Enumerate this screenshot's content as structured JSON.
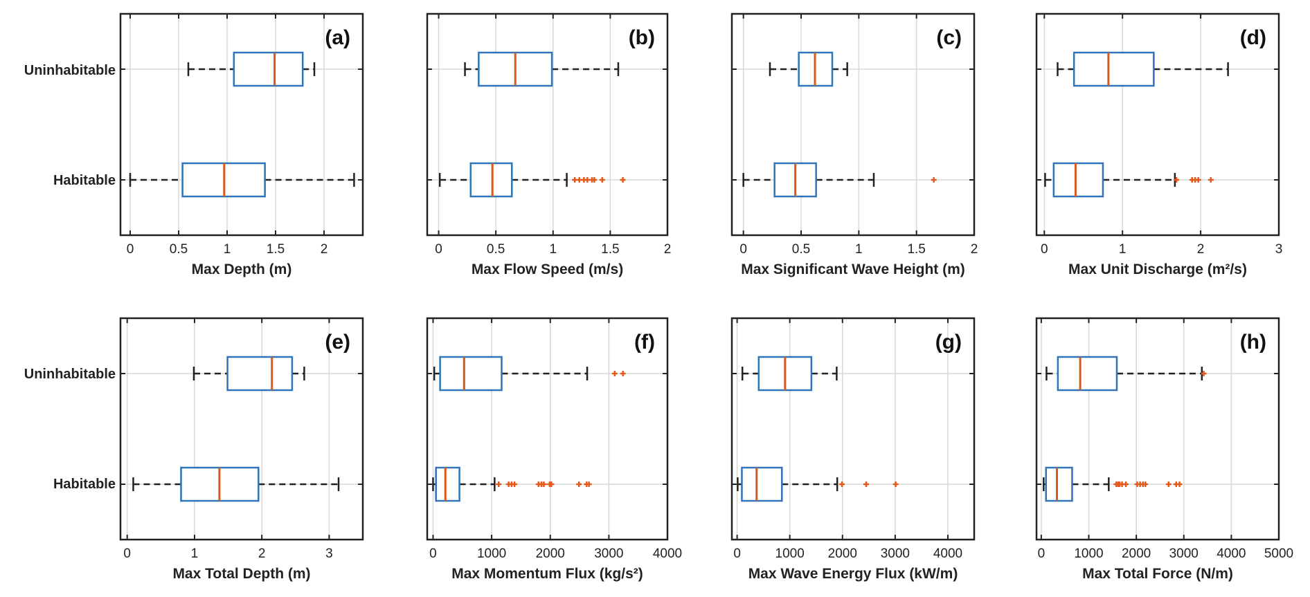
{
  "figure": {
    "categories": [
      "Uninhabitable",
      "Habitable"
    ]
  },
  "chart_data": [
    {
      "type": "box",
      "panel_label": "(a)",
      "xlabel": "Max Depth (m)",
      "xlim": [
        -0.1,
        2.4
      ],
      "xticks": [
        0,
        0.5,
        1,
        1.5,
        2
      ],
      "tick_labels": [
        "0",
        "0.5",
        "1",
        "1.5",
        "2"
      ],
      "grid": true,
      "boxes": [
        {
          "category": "Uninhabitable",
          "whisker_low": 0.6,
          "q1": 1.07,
          "median": 1.49,
          "q3": 1.78,
          "whisker_high": 1.9,
          "outliers": []
        },
        {
          "category": "Habitable",
          "whisker_low": 0.0,
          "q1": 0.54,
          "median": 0.97,
          "q3": 1.39,
          "whisker_high": 2.31,
          "outliers": []
        }
      ]
    },
    {
      "type": "box",
      "panel_label": "(b)",
      "xlabel": "Max Flow Speed (m/s)",
      "xlim": [
        -0.1,
        2
      ],
      "xticks": [
        0,
        0.5,
        1,
        1.5,
        2
      ],
      "tick_labels": [
        "0",
        "0.5",
        "1",
        "1.5",
        "2"
      ],
      "grid": true,
      "boxes": [
        {
          "category": "Uninhabitable",
          "whisker_low": 0.23,
          "q1": 0.35,
          "median": 0.67,
          "q3": 0.99,
          "whisker_high": 1.57,
          "outliers": []
        },
        {
          "category": "Habitable",
          "whisker_low": 0.01,
          "q1": 0.28,
          "median": 0.47,
          "q3": 0.64,
          "whisker_high": 1.12,
          "outliers": [
            1.19,
            1.23,
            1.27,
            1.3,
            1.34,
            1.36,
            1.43,
            1.61
          ]
        }
      ]
    },
    {
      "type": "box",
      "panel_label": "(c)",
      "xlabel": "Max Significant Wave Height (m)",
      "xlim": [
        -0.1,
        2
      ],
      "xticks": [
        0,
        0.5,
        1,
        1.5,
        2
      ],
      "tick_labels": [
        "0",
        "0.5",
        "1",
        "1.5",
        "2"
      ],
      "grid": true,
      "boxes": [
        {
          "category": "Uninhabitable",
          "whisker_low": 0.23,
          "q1": 0.48,
          "median": 0.62,
          "q3": 0.77,
          "whisker_high": 0.9,
          "outliers": []
        },
        {
          "category": "Habitable",
          "whisker_low": 0.0,
          "q1": 0.27,
          "median": 0.45,
          "q3": 0.63,
          "whisker_high": 1.13,
          "outliers": [
            1.65
          ]
        }
      ]
    },
    {
      "type": "box",
      "panel_label": "(d)",
      "xlabel": "Max Unit Discharge (m²/s)",
      "xlim": [
        -0.1,
        3
      ],
      "xticks": [
        0,
        1,
        2,
        3
      ],
      "tick_labels": [
        "0",
        "1",
        "2",
        "3"
      ],
      "grid": true,
      "boxes": [
        {
          "category": "Uninhabitable",
          "whisker_low": 0.17,
          "q1": 0.38,
          "median": 0.82,
          "q3": 1.4,
          "whisker_high": 2.35,
          "outliers": []
        },
        {
          "category": "Habitable",
          "whisker_low": 0.01,
          "q1": 0.12,
          "median": 0.4,
          "q3": 0.75,
          "whisker_high": 1.67,
          "outliers": [
            1.69,
            1.89,
            1.93,
            1.97,
            2.13
          ]
        }
      ]
    },
    {
      "type": "box",
      "panel_label": "(e)",
      "xlabel": "Max Total Depth (m)",
      "xlim": [
        -0.1,
        3.5
      ],
      "xticks": [
        0,
        1,
        2,
        3
      ],
      "tick_labels": [
        "0",
        "1",
        "2",
        "3"
      ],
      "grid": true,
      "boxes": [
        {
          "category": "Uninhabitable",
          "whisker_low": 0.99,
          "q1": 1.49,
          "median": 2.15,
          "q3": 2.45,
          "whisker_high": 2.63,
          "outliers": []
        },
        {
          "category": "Habitable",
          "whisker_low": 0.09,
          "q1": 0.8,
          "median": 1.37,
          "q3": 1.95,
          "whisker_high": 3.14,
          "outliers": []
        }
      ]
    },
    {
      "type": "box",
      "panel_label": "(f)",
      "xlabel": "Max Momentum Flux (kg/s²)",
      "xlim": [
        -100,
        4000
      ],
      "xticks": [
        0,
        1000,
        2000,
        3000,
        4000
      ],
      "tick_labels": [
        "0",
        "1000",
        "2000",
        "3000",
        "4000"
      ],
      "grid": true,
      "boxes": [
        {
          "category": "Uninhabitable",
          "whisker_low": 20,
          "q1": 120,
          "median": 530,
          "q3": 1170,
          "whisker_high": 2630,
          "outliers": [
            3100,
            3240
          ]
        },
        {
          "category": "Habitable",
          "whisker_low": 0,
          "q1": 50,
          "median": 210,
          "q3": 450,
          "whisker_high": 1050,
          "outliers": [
            1120,
            1290,
            1340,
            1390,
            1800,
            1850,
            1890,
            1990,
            2020,
            2490,
            2620,
            2660
          ]
        }
      ]
    },
    {
      "type": "box",
      "panel_label": "(g)",
      "xlabel": "Max Wave Energy Flux (kW/m)",
      "xlim": [
        -100,
        4500
      ],
      "xticks": [
        0,
        1000,
        2000,
        3000,
        4000
      ],
      "tick_labels": [
        "0",
        "1000",
        "2000",
        "3000",
        "4000"
      ],
      "grid": true,
      "boxes": [
        {
          "category": "Uninhabitable",
          "whisker_low": 100,
          "q1": 410,
          "median": 910,
          "q3": 1410,
          "whisker_high": 1890,
          "outliers": []
        },
        {
          "category": "Habitable",
          "whisker_low": 10,
          "q1": 90,
          "median": 370,
          "q3": 850,
          "whisker_high": 1900,
          "outliers": [
            1990,
            2450,
            3010
          ]
        }
      ]
    },
    {
      "type": "box",
      "panel_label": "(h)",
      "xlabel": "Max Total Force (N/m)",
      "xlim": [
        -100,
        5000
      ],
      "xticks": [
        0,
        1000,
        2000,
        3000,
        4000,
        5000
      ],
      "tick_labels": [
        "0",
        "1000",
        "2000",
        "3000",
        "4000",
        "5000"
      ],
      "grid": true,
      "boxes": [
        {
          "category": "Uninhabitable",
          "whisker_low": 110,
          "q1": 350,
          "median": 820,
          "q3": 1590,
          "whisker_high": 3380,
          "outliers": [
            3420
          ]
        },
        {
          "category": "Habitable",
          "whisker_low": 50,
          "q1": 100,
          "median": 330,
          "q3": 650,
          "whisker_high": 1420,
          "outliers": [
            1580,
            1620,
            1650,
            1700,
            1780,
            2020,
            2080,
            2140,
            2190,
            2680,
            2840,
            2910
          ]
        }
      ]
    }
  ],
  "colors": {
    "box": "#2f73b8",
    "median": "#d9581c",
    "outlier": "#e45a1c",
    "whisker": "#222222",
    "grid": "#d8d8d8",
    "axis": "#222222"
  }
}
